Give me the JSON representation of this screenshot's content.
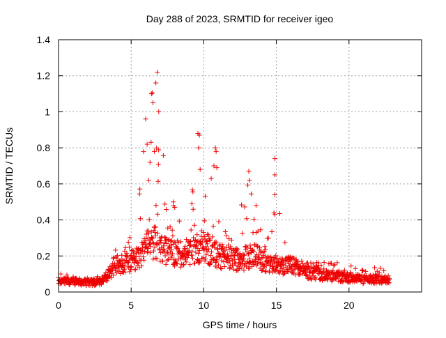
{
  "chart_data": {
    "type": "scatter",
    "title": "Day 288 of 2023, SRMTID for receiver igeo",
    "xlabel": "GPS time / hours",
    "ylabel": "SRMTID / TECUs",
    "xlim": [
      0,
      25
    ],
    "ylim": [
      0,
      1.4
    ],
    "xticks": [
      0,
      5,
      10,
      15,
      20
    ],
    "xtick_labels": [
      "0",
      "5",
      "10",
      "15",
      "20"
    ],
    "yticks": [
      0,
      0.2,
      0.4,
      0.6,
      0.8,
      1.0,
      1.2,
      1.4
    ],
    "ytick_labels": [
      "0",
      "0.2",
      "0.4",
      "0.6",
      "0.8",
      "1",
      "1.2",
      "1.4"
    ],
    "grid": true,
    "marker": "+",
    "series": [
      {
        "name": "SRMTID",
        "color": "#ee0000",
        "envelope": {
          "x": [
            0,
            1,
            2,
            3,
            3.5,
            4,
            4.5,
            5,
            5.5,
            6,
            6.5,
            7,
            7.5,
            8,
            8.5,
            9,
            9.5,
            10,
            10.5,
            11,
            11.5,
            12,
            12.5,
            13,
            13.5,
            14,
            14.5,
            15,
            15.5,
            16,
            16.5,
            17,
            18,
            19,
            20,
            21,
            22,
            22.8
          ],
          "baseline": [
            0.06,
            0.06,
            0.05,
            0.06,
            0.1,
            0.15,
            0.16,
            0.17,
            0.2,
            0.24,
            0.28,
            0.25,
            0.22,
            0.22,
            0.21,
            0.21,
            0.24,
            0.26,
            0.22,
            0.2,
            0.19,
            0.18,
            0.18,
            0.19,
            0.2,
            0.18,
            0.15,
            0.14,
            0.15,
            0.15,
            0.13,
            0.11,
            0.1,
            0.09,
            0.08,
            0.07,
            0.07,
            0.07
          ],
          "peak": [
            0.1,
            0.1,
            0.08,
            0.1,
            0.14,
            0.25,
            0.27,
            0.35,
            0.5,
            0.98,
            1.12,
            1.22,
            0.4,
            0.5,
            0.35,
            0.33,
            0.88,
            0.5,
            0.8,
            0.45,
            0.35,
            0.3,
            0.45,
            0.67,
            0.55,
            0.35,
            0.3,
            0.74,
            0.3,
            0.3,
            0.25,
            0.18,
            0.17,
            0.17,
            0.16,
            0.13,
            0.14,
            0.12
          ]
        },
        "highlights": [
          {
            "x": 6.0,
            "y": 0.96
          },
          {
            "x": 6.1,
            "y": 0.82
          },
          {
            "x": 6.4,
            "y": 1.1
          },
          {
            "x": 6.5,
            "y": 1.05
          },
          {
            "x": 6.7,
            "y": 1.16
          },
          {
            "x": 6.8,
            "y": 1.22
          },
          {
            "x": 6.9,
            "y": 1.0
          },
          {
            "x": 6.6,
            "y": 0.78
          },
          {
            "x": 6.3,
            "y": 0.72
          },
          {
            "x": 6.2,
            "y": 0.62
          },
          {
            "x": 7.9,
            "y": 0.5
          },
          {
            "x": 8.0,
            "y": 0.47
          },
          {
            "x": 9.6,
            "y": 0.88
          },
          {
            "x": 9.7,
            "y": 0.87
          },
          {
            "x": 9.65,
            "y": 0.8
          },
          {
            "x": 9.75,
            "y": 0.68
          },
          {
            "x": 10.8,
            "y": 0.8
          },
          {
            "x": 10.85,
            "y": 0.78
          },
          {
            "x": 10.7,
            "y": 0.7
          },
          {
            "x": 10.9,
            "y": 0.69
          },
          {
            "x": 13.1,
            "y": 0.67
          },
          {
            "x": 13.15,
            "y": 0.62
          },
          {
            "x": 13.6,
            "y": 0.48
          },
          {
            "x": 14.9,
            "y": 0.74
          },
          {
            "x": 14.9,
            "y": 0.65
          },
          {
            "x": 14.9,
            "y": 0.54
          },
          {
            "x": 14.9,
            "y": 0.43
          }
        ]
      }
    ]
  }
}
